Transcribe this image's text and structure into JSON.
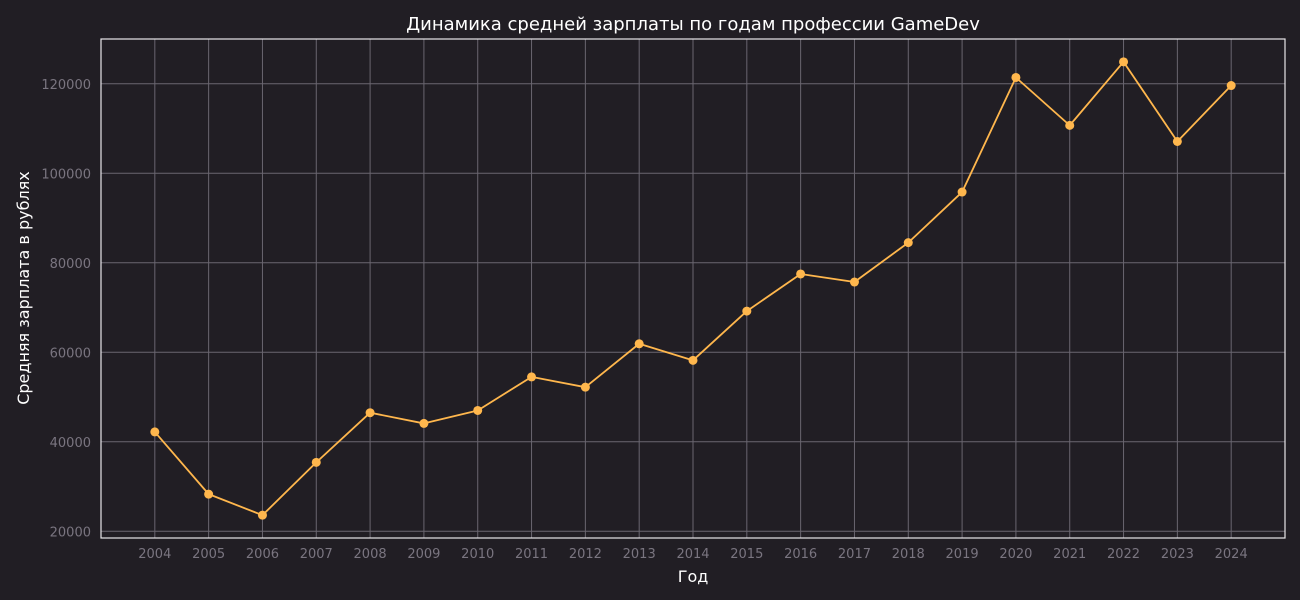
{
  "chart_data": {
    "type": "line",
    "title": "Динамика средней зарплаты по годам профессии GameDev",
    "xlabel": "Год",
    "ylabel": "Средняя зарплата в рублях",
    "x": [
      2004,
      2005,
      2006,
      2007,
      2008,
      2009,
      2010,
      2011,
      2012,
      2013,
      2014,
      2015,
      2016,
      2017,
      2018,
      2019,
      2020,
      2021,
      2022,
      2023,
      2024
    ],
    "series": [
      {
        "values": [
          42200,
          28300,
          23600,
          35400,
          46500,
          44100,
          47000,
          54500,
          52200,
          61900,
          58200,
          69200,
          77500,
          75700,
          84500,
          95800,
          121400,
          110700,
          124900,
          107100,
          119600
        ]
      }
    ],
    "yticks": [
      20000,
      40000,
      60000,
      80000,
      100000,
      120000
    ],
    "xlim": [
      2003,
      2025
    ],
    "ylim": [
      18500,
      130000
    ],
    "grid": true,
    "colors": {
      "background": "#211e24",
      "line": "#ffb74d",
      "grid": "#6a6670",
      "frame": "#e8e6ea",
      "tick_text": "#7a7580",
      "text": "#ffffff"
    }
  }
}
